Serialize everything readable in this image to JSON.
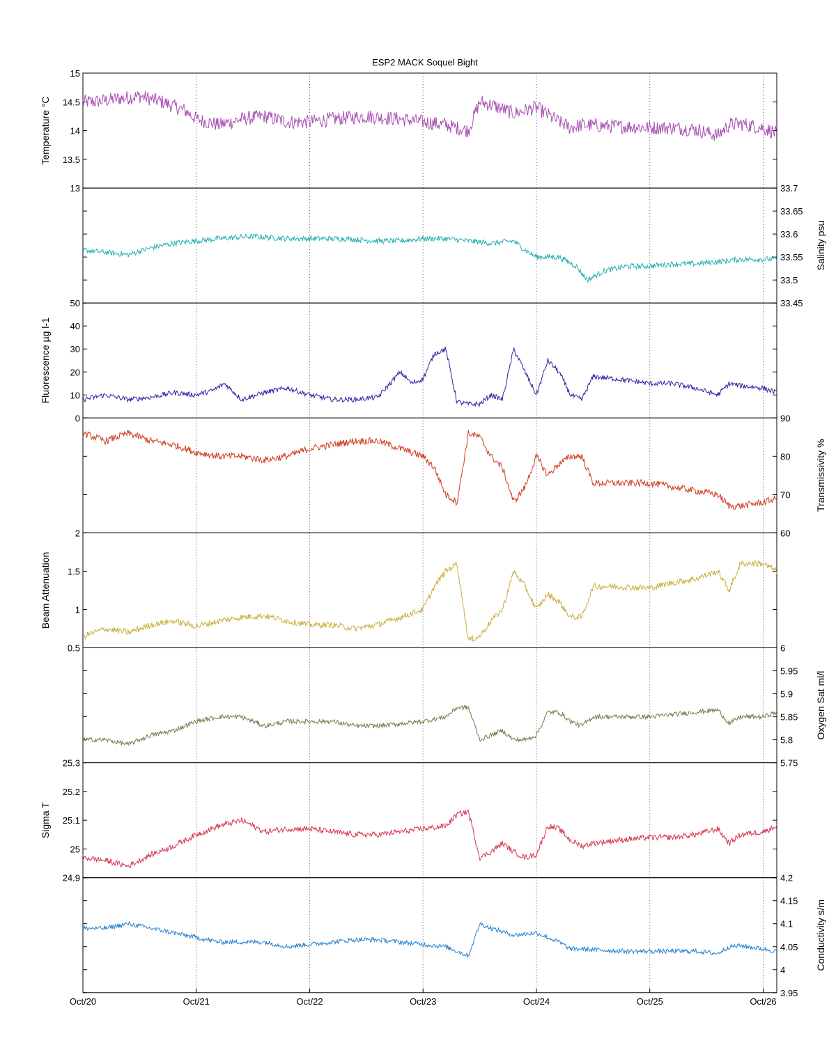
{
  "chart_data": {
    "type": "line",
    "title": "ESP2 MACK  Soquel Bight",
    "x_range": [
      "Oct/20",
      "Oct/26 + 0.12"
    ],
    "x_ticks": [
      "Oct/20",
      "Oct/21",
      "Oct/22",
      "Oct/23",
      "Oct/24",
      "Oct/25",
      "Oct/26"
    ],
    "grid": "vertical dotted at day boundaries",
    "panels": [
      {
        "id": "temperature",
        "ylabel": "Temperature °C",
        "axis_side": "left",
        "ylim": [
          13,
          15
        ],
        "yticks": [
          "15",
          "14.5",
          "14",
          "13.5",
          "13"
        ],
        "ytick_values": [
          15,
          14.5,
          14,
          13.5,
          13
        ],
        "color": "#a64eb0",
        "noise": 0.25,
        "series": {
          "name": "",
          "x": [
            0,
            0.1,
            0.3,
            0.5,
            0.7,
            0.9,
            1.0,
            1.2,
            1.4,
            1.6,
            1.8,
            2.0,
            2.2,
            2.5,
            2.8,
            3.0,
            3.2,
            3.4,
            3.5,
            3.6,
            3.8,
            4.0,
            4.2,
            4.3,
            4.4,
            4.6,
            4.8,
            5.0,
            5.2,
            5.4,
            5.6,
            5.7,
            5.8,
            6.0,
            6.12
          ],
          "y": [
            14.5,
            14.5,
            14.55,
            14.6,
            14.5,
            14.35,
            14.2,
            14.1,
            14.2,
            14.25,
            14.15,
            14.15,
            14.2,
            14.25,
            14.2,
            14.15,
            14.1,
            14.0,
            14.5,
            14.45,
            14.3,
            14.4,
            14.15,
            14.05,
            14.1,
            14.08,
            14.07,
            14.05,
            14.05,
            14.02,
            13.92,
            14.1,
            14.12,
            14.05,
            13.95
          ]
        }
      },
      {
        "id": "salinity",
        "ylabel": "Salinity psu",
        "axis_side": "right",
        "ylim": [
          33.45,
          33.7
        ],
        "yticks": [
          "33.7",
          "33.65",
          "33.6",
          "33.55",
          "33.5",
          "33.45"
        ],
        "ytick_values": [
          33.7,
          33.65,
          33.6,
          33.55,
          33.5,
          33.45
        ],
        "color": "#22aeb0",
        "noise": 0.012,
        "series": {
          "name": "",
          "x": [
            0,
            0.2,
            0.4,
            0.6,
            0.8,
            1.0,
            1.2,
            1.5,
            1.8,
            2.0,
            2.3,
            2.6,
            2.8,
            3.0,
            3.2,
            3.4,
            3.6,
            3.8,
            3.9,
            4.0,
            4.2,
            4.35,
            4.45,
            4.6,
            4.8,
            5.0,
            5.2,
            5.4,
            5.6,
            5.8,
            6.0,
            6.12
          ],
          "y": [
            33.565,
            33.56,
            33.555,
            33.57,
            33.58,
            33.585,
            33.59,
            33.595,
            33.59,
            33.59,
            33.59,
            33.585,
            33.585,
            33.59,
            33.59,
            33.585,
            33.58,
            33.585,
            33.565,
            33.55,
            33.55,
            33.53,
            33.5,
            33.52,
            33.53,
            33.53,
            33.535,
            33.535,
            33.54,
            33.545,
            33.545,
            33.545
          ]
        }
      },
      {
        "id": "fluorescence",
        "ylabel": "Fluorescence µg l-1",
        "axis_side": "left",
        "ylim": [
          0,
          50
        ],
        "yticks": [
          "50",
          "40",
          "30",
          "20",
          "10",
          "0"
        ],
        "ytick_values": [
          50,
          40,
          30,
          20,
          10,
          0
        ],
        "color": "#2a21a3",
        "noise": 2.2,
        "series": {
          "name": "",
          "x": [
            0,
            0.2,
            0.4,
            0.6,
            0.8,
            1.0,
            1.15,
            1.25,
            1.4,
            1.6,
            1.8,
            2.0,
            2.2,
            2.4,
            2.6,
            2.8,
            2.9,
            3.0,
            3.1,
            3.2,
            3.3,
            3.4,
            3.5,
            3.6,
            3.7,
            3.8,
            3.9,
            4.0,
            4.1,
            4.2,
            4.3,
            4.4,
            4.5,
            4.7,
            5.0,
            5.2,
            5.4,
            5.6,
            5.7,
            5.8,
            6.0,
            6.12
          ],
          "y": [
            8,
            10,
            8,
            9,
            11,
            10,
            12,
            15,
            8,
            11,
            13,
            10,
            8,
            8,
            9,
            20,
            15,
            17,
            28,
            30,
            7,
            6,
            6,
            10,
            8,
            30,
            20,
            10,
            25,
            20,
            10,
            8,
            18,
            17,
            15,
            15,
            13,
            10,
            15,
            14,
            13,
            11
          ]
        }
      },
      {
        "id": "transmissivity",
        "ylabel": "Transmissivity %",
        "axis_side": "right",
        "ylim": [
          60,
          90
        ],
        "yticks": [
          "90",
          "80",
          "70",
          "60"
        ],
        "ytick_values": [
          90,
          80,
          70,
          60
        ],
        "color": "#d03a1d",
        "noise": 1.8,
        "series": {
          "name": "",
          "x": [
            0,
            0.2,
            0.4,
            0.6,
            0.8,
            1.0,
            1.2,
            1.4,
            1.6,
            1.8,
            2.0,
            2.2,
            2.4,
            2.6,
            2.8,
            3.0,
            3.1,
            3.2,
            3.3,
            3.4,
            3.5,
            3.6,
            3.7,
            3.8,
            3.9,
            4.0,
            4.1,
            4.2,
            4.3,
            4.4,
            4.5,
            4.7,
            5.0,
            5.2,
            5.4,
            5.6,
            5.7,
            5.8,
            6.0,
            6.12
          ],
          "y": [
            86,
            84,
            86,
            84,
            83,
            81,
            80,
            80,
            79,
            80,
            82,
            83,
            84,
            84,
            82,
            80,
            77,
            70,
            68,
            86,
            85,
            80,
            77,
            68,
            72,
            80,
            75,
            78,
            80,
            80,
            73,
            73,
            73,
            72,
            71,
            70,
            67,
            67,
            68,
            69
          ]
        }
      },
      {
        "id": "beam-attenuation",
        "ylabel": "Beam Attenuation",
        "axis_side": "left",
        "ylim": [
          0.5,
          2
        ],
        "yticks": [
          "2",
          "1.5",
          "1",
          "0.5"
        ],
        "ytick_values": [
          2,
          1.5,
          1,
          0.5
        ],
        "color": "#c9ad3a",
        "noise": 0.08,
        "series": {
          "name": "",
          "x": [
            0,
            0.2,
            0.4,
            0.6,
            0.8,
            1.0,
            1.2,
            1.4,
            1.6,
            1.8,
            2.0,
            2.2,
            2.4,
            2.6,
            2.8,
            3.0,
            3.1,
            3.2,
            3.3,
            3.4,
            3.5,
            3.6,
            3.7,
            3.8,
            3.9,
            4.0,
            4.1,
            4.2,
            4.3,
            4.4,
            4.5,
            4.7,
            5.0,
            5.2,
            5.4,
            5.6,
            5.7,
            5.8,
            6.0,
            6.12
          ],
          "y": [
            0.65,
            0.75,
            0.7,
            0.8,
            0.85,
            0.78,
            0.85,
            0.9,
            0.92,
            0.85,
            0.8,
            0.8,
            0.75,
            0.8,
            0.9,
            1.0,
            1.3,
            1.5,
            1.6,
            0.6,
            0.65,
            0.85,
            1.0,
            1.5,
            1.3,
            1.0,
            1.2,
            1.1,
            0.9,
            0.9,
            1.3,
            1.3,
            1.28,
            1.35,
            1.4,
            1.5,
            1.25,
            1.6,
            1.6,
            1.5
          ]
        }
      },
      {
        "id": "oxygen",
        "ylabel": "Oxygen Sat ml/l",
        "axis_side": "right",
        "ylim": [
          5.75,
          6
        ],
        "yticks": [
          "6",
          "5.95",
          "5.9",
          "5.85",
          "5.8",
          "5.75"
        ],
        "ytick_values": [
          6,
          5.95,
          5.9,
          5.85,
          5.8,
          5.75
        ],
        "color": "#7c7549",
        "noise": 0.01,
        "series": {
          "name": "",
          "x": [
            0,
            0.2,
            0.4,
            0.6,
            0.8,
            1.0,
            1.2,
            1.4,
            1.6,
            1.8,
            2.0,
            2.2,
            2.4,
            2.6,
            2.8,
            3.0,
            3.2,
            3.3,
            3.4,
            3.5,
            3.6,
            3.7,
            3.8,
            3.9,
            4.0,
            4.1,
            4.2,
            4.3,
            4.4,
            4.5,
            4.7,
            5.0,
            5.2,
            5.4,
            5.6,
            5.7,
            5.8,
            6.0,
            6.12
          ],
          "y": [
            5.8,
            5.8,
            5.79,
            5.81,
            5.82,
            5.84,
            5.85,
            5.85,
            5.83,
            5.84,
            5.84,
            5.84,
            5.83,
            5.83,
            5.835,
            5.84,
            5.85,
            5.87,
            5.87,
            5.8,
            5.81,
            5.82,
            5.8,
            5.8,
            5.81,
            5.86,
            5.86,
            5.84,
            5.83,
            5.85,
            5.85,
            5.85,
            5.855,
            5.86,
            5.865,
            5.835,
            5.85,
            5.85,
            5.86
          ]
        }
      },
      {
        "id": "sigma-t",
        "ylabel": "Sigma T",
        "axis_side": "left",
        "ylim": [
          24.9,
          25.3
        ],
        "yticks": [
          "25.3",
          "25.2",
          "25.1",
          "25",
          "24.9"
        ],
        "ytick_values": [
          25.3,
          25.2,
          25.1,
          25,
          24.9
        ],
        "color": "#d6314e",
        "noise": 0.02,
        "series": {
          "name": "",
          "x": [
            0,
            0.2,
            0.4,
            0.6,
            0.8,
            1.0,
            1.2,
            1.4,
            1.6,
            1.8,
            2.0,
            2.2,
            2.4,
            2.6,
            2.8,
            3.0,
            3.2,
            3.3,
            3.4,
            3.5,
            3.6,
            3.7,
            3.8,
            3.9,
            4.0,
            4.1,
            4.2,
            4.3,
            4.4,
            4.5,
            4.7,
            5.0,
            5.2,
            5.4,
            5.6,
            5.7,
            5.8,
            6.0,
            6.12
          ],
          "y": [
            24.97,
            24.96,
            24.94,
            24.98,
            25.01,
            25.05,
            25.08,
            25.1,
            25.06,
            25.07,
            25.07,
            25.06,
            25.05,
            25.05,
            25.06,
            25.07,
            25.08,
            25.12,
            25.13,
            24.97,
            24.99,
            25.02,
            24.99,
            24.97,
            24.98,
            25.08,
            25.07,
            25.03,
            25.01,
            25.02,
            25.03,
            25.04,
            25.04,
            25.05,
            25.07,
            25.02,
            25.05,
            25.06,
            25.08
          ]
        }
      },
      {
        "id": "conductivity",
        "ylabel": "Conductivity s/m",
        "axis_side": "right",
        "ylim": [
          3.95,
          4.2
        ],
        "yticks": [
          "4.2",
          "4.15",
          "4.1",
          "4.05",
          "4",
          "3.95"
        ],
        "ytick_values": [
          4.2,
          4.15,
          4.1,
          4.05,
          4,
          3.95
        ],
        "color": "#1f7fd0",
        "noise": 0.01,
        "series": {
          "name": "",
          "x": [
            0,
            0.2,
            0.4,
            0.6,
            0.8,
            1.0,
            1.2,
            1.4,
            1.6,
            1.8,
            2.0,
            2.2,
            2.4,
            2.6,
            2.8,
            3.0,
            3.2,
            3.4,
            3.5,
            3.6,
            3.8,
            4.0,
            4.2,
            4.3,
            4.4,
            4.6,
            4.8,
            5.0,
            5.2,
            5.4,
            5.6,
            5.7,
            5.8,
            6.0,
            6.12
          ],
          "y": [
            4.09,
            4.09,
            4.1,
            4.09,
            4.08,
            4.07,
            4.06,
            4.06,
            4.06,
            4.05,
            4.055,
            4.06,
            4.065,
            4.065,
            4.06,
            4.055,
            4.05,
            4.03,
            4.1,
            4.09,
            4.075,
            4.08,
            4.06,
            4.045,
            4.045,
            4.042,
            4.04,
            4.04,
            4.04,
            4.04,
            4.035,
            4.05,
            4.052,
            4.045,
            4.04
          ]
        }
      }
    ]
  }
}
